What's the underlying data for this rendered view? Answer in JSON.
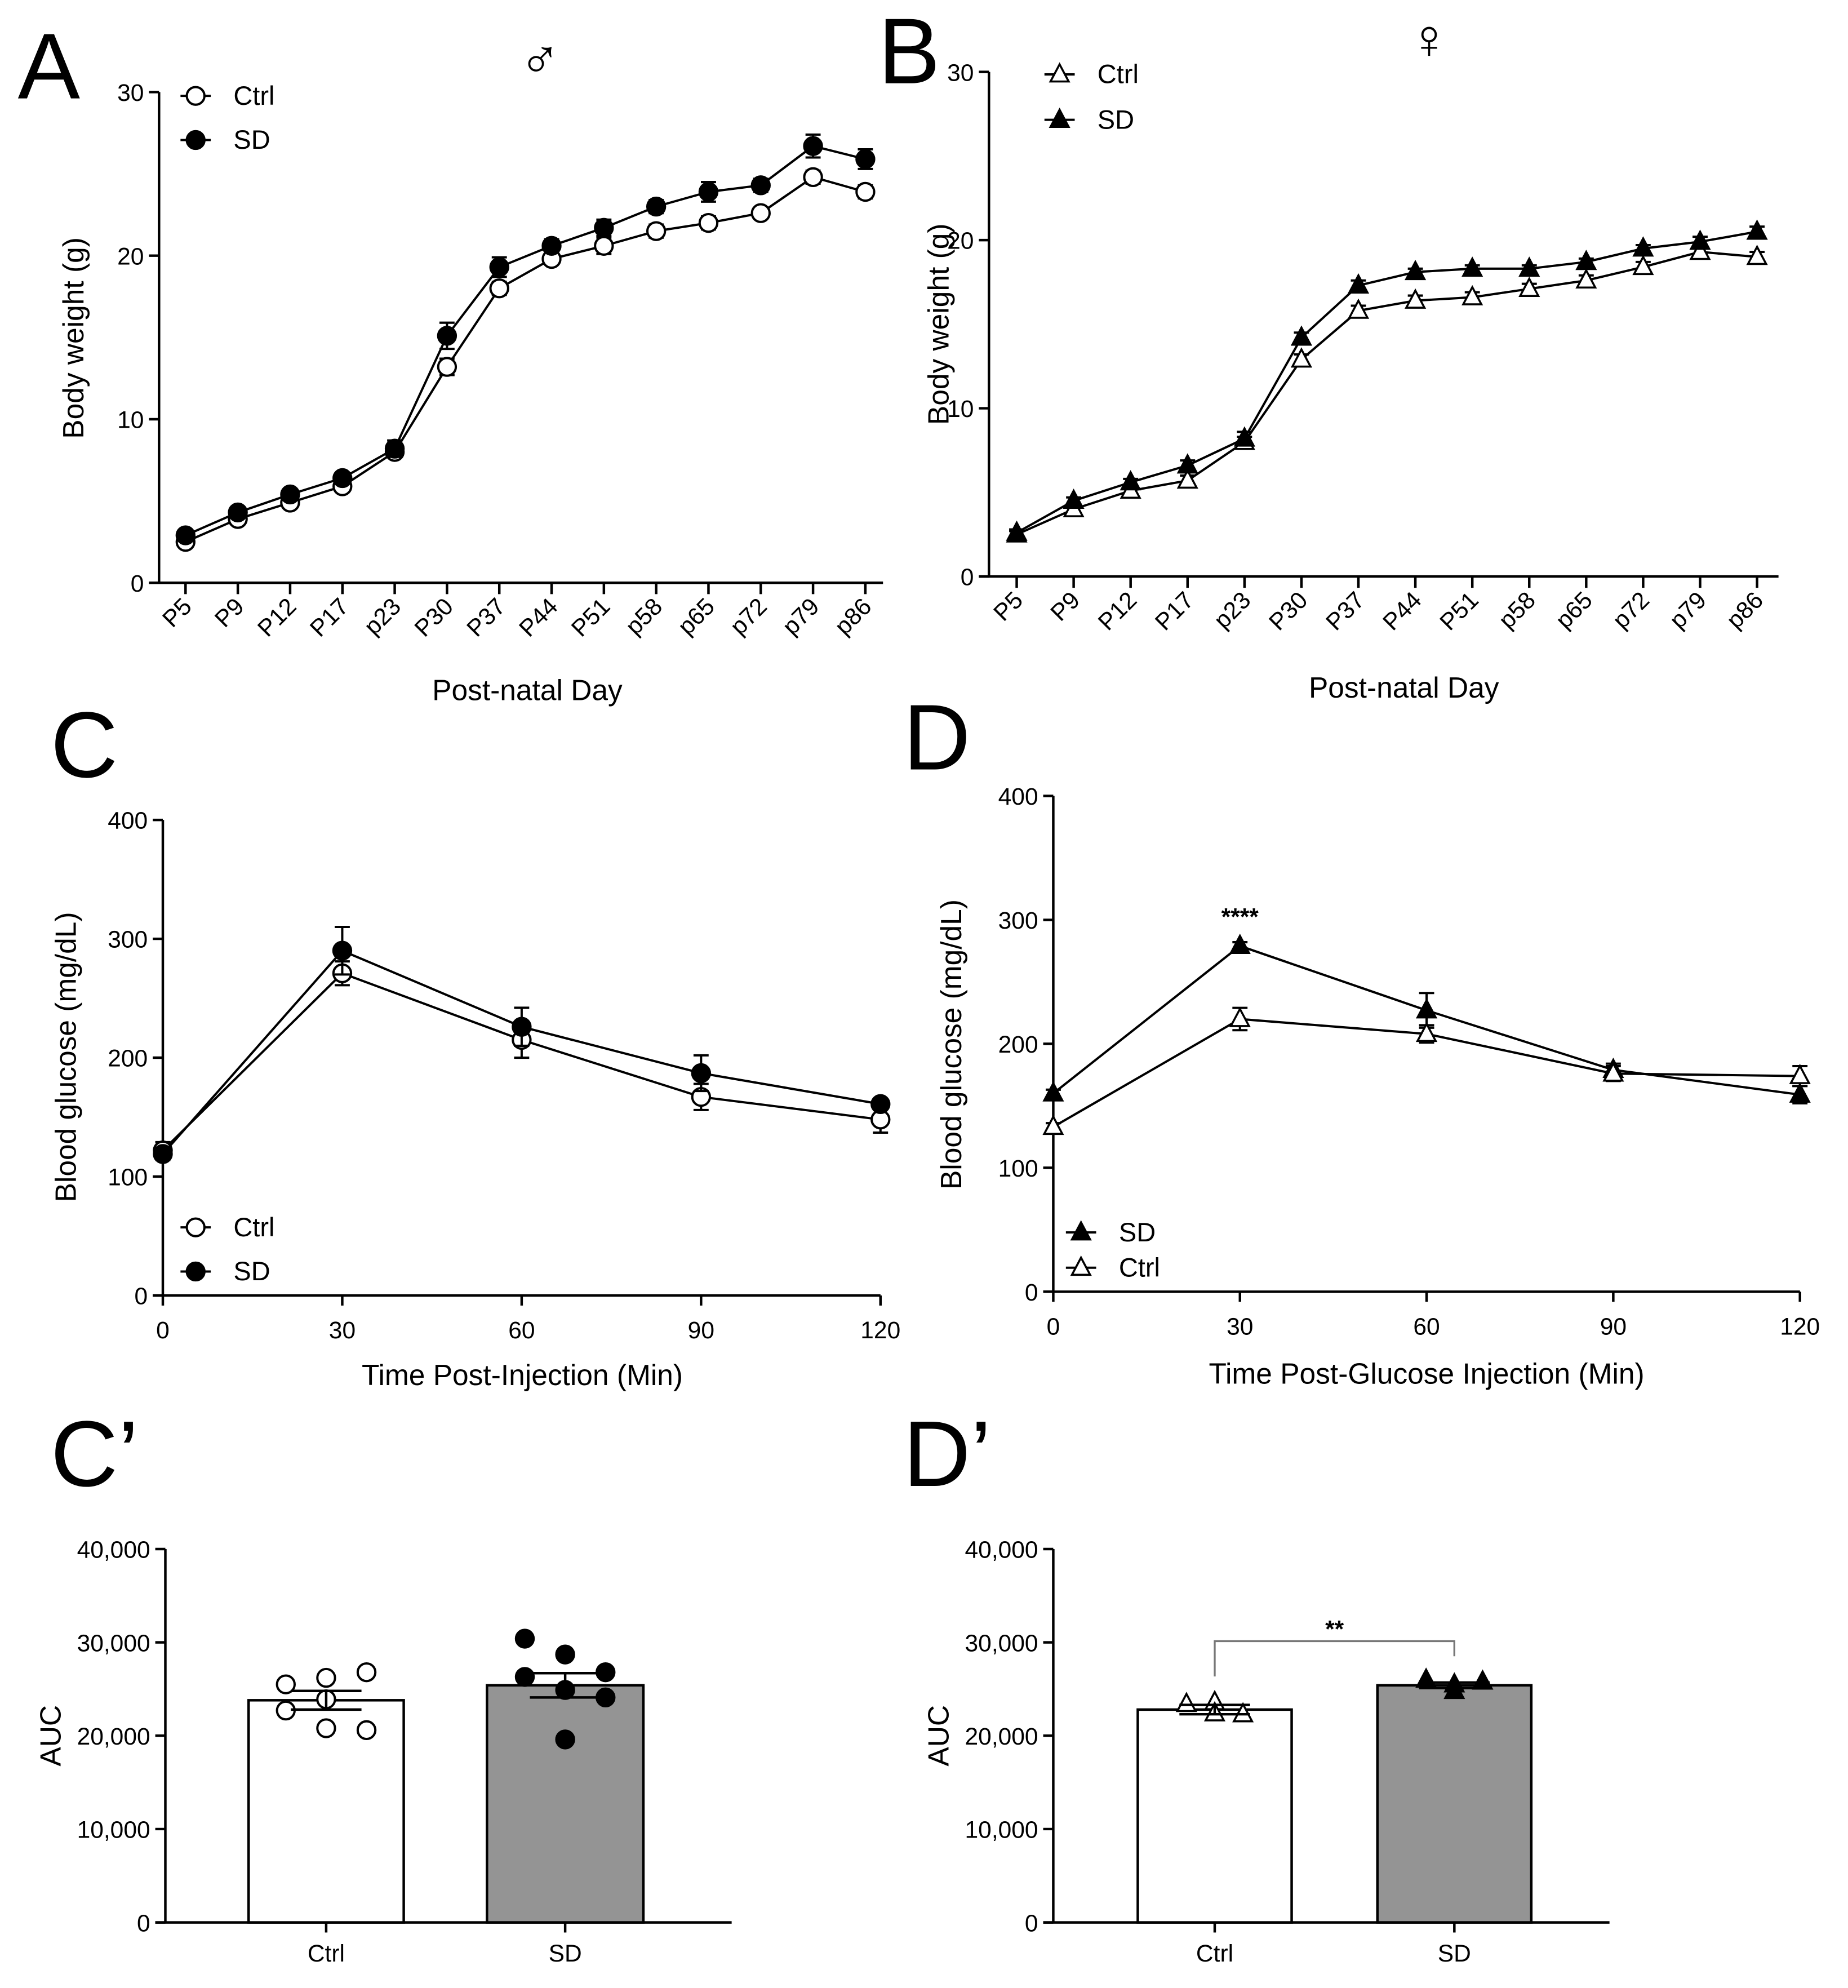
{
  "chart_data": [
    {
      "panel": "A",
      "type": "line",
      "title": "♂",
      "xlabel": "Post-natal Day",
      "ylabel": "Body weight (g)",
      "categories": [
        "P5",
        "P9",
        "P12",
        "P17",
        "p23",
        "P30",
        "P37",
        "P44",
        "P51",
        "p58",
        "p65",
        "p72",
        "p79",
        "p86"
      ],
      "ylim": [
        0,
        30
      ],
      "yticks": [
        0,
        10,
        20,
        30
      ],
      "legend": "top-left",
      "series": [
        {
          "name": "Ctrl",
          "marker": "open-circle",
          "values": [
            2.5,
            3.9,
            4.9,
            5.9,
            8.0,
            13.2,
            18.0,
            19.8,
            20.6,
            21.5,
            22.0,
            22.6,
            24.8,
            23.9
          ],
          "sem": [
            0.2,
            0.2,
            0.2,
            0.2,
            0.3,
            0.5,
            0.4,
            0.3,
            0.5,
            0.4,
            0.4,
            0.3,
            0.4,
            0.4
          ]
        },
        {
          "name": "SD",
          "marker": "filled-circle",
          "values": [
            2.9,
            4.3,
            5.4,
            6.4,
            8.2,
            15.1,
            19.3,
            20.6,
            21.7,
            23.0,
            23.9,
            24.3,
            26.7,
            25.9
          ],
          "sem": [
            0.2,
            0.2,
            0.3,
            0.3,
            0.5,
            0.8,
            0.6,
            0.4,
            0.5,
            0.4,
            0.6,
            0.4,
            0.7,
            0.6
          ]
        }
      ]
    },
    {
      "panel": "B",
      "type": "line",
      "title": "♀",
      "xlabel": "Post-natal Day",
      "ylabel": "Body weight (g)",
      "categories": [
        "P5",
        "P9",
        "P12",
        "P17",
        "p23",
        "P30",
        "P37",
        "P44",
        "P51",
        "p58",
        "p65",
        "p72",
        "p79",
        "p86"
      ],
      "ylim": [
        0,
        30
      ],
      "yticks": [
        0,
        10,
        20,
        30
      ],
      "legend": "top-left",
      "series": [
        {
          "name": "Ctrl",
          "marker": "open-triangle",
          "values": [
            2.5,
            4.0,
            5.1,
            5.7,
            8.0,
            12.9,
            15.8,
            16.4,
            16.6,
            17.1,
            17.6,
            18.4,
            19.3,
            19.0
          ],
          "sem": [
            0.2,
            0.2,
            0.2,
            0.3,
            0.3,
            0.3,
            0.3,
            0.3,
            0.3,
            0.3,
            0.3,
            0.3,
            0.3,
            0.3
          ]
        },
        {
          "name": "SD",
          "marker": "filled-triangle",
          "values": [
            2.6,
            4.5,
            5.6,
            6.6,
            8.2,
            14.2,
            17.3,
            18.1,
            18.3,
            18.3,
            18.7,
            19.5,
            19.9,
            20.5
          ],
          "sem": [
            0.2,
            0.2,
            0.2,
            0.3,
            0.4,
            0.3,
            0.3,
            0.2,
            0.2,
            0.2,
            0.2,
            0.2,
            0.3,
            0.3
          ]
        }
      ]
    },
    {
      "panel": "C",
      "type": "line",
      "xlabel": "Time Post-Injection (Min)",
      "ylabel": "Blood glucose (mg/dL)",
      "x": [
        0,
        30,
        60,
        90,
        120
      ],
      "xlim": [
        0,
        120
      ],
      "xticks": [
        0,
        30,
        60,
        90,
        120
      ],
      "ylim": [
        0,
        400
      ],
      "yticks": [
        0,
        100,
        200,
        300,
        400
      ],
      "legend": "bottom-left",
      "series": [
        {
          "name": "Ctrl",
          "marker": "open-circle",
          "values": [
            122,
            271,
            215,
            167,
            148
          ],
          "sem": [
            7,
            10,
            15,
            11,
            11
          ]
        },
        {
          "name": "SD",
          "marker": "filled-circle",
          "values": [
            119,
            290,
            226,
            187,
            161
          ],
          "sem": [
            5,
            20,
            16,
            15,
            4
          ]
        }
      ]
    },
    {
      "panel": "D",
      "type": "line",
      "xlabel": "Time Post-Glucose Injection (Min)",
      "ylabel": "Blood glucose (mg/dL)",
      "x": [
        0,
        30,
        60,
        90,
        120
      ],
      "xlim": [
        0,
        120
      ],
      "xticks": [
        0,
        30,
        60,
        90,
        120
      ],
      "ylim": [
        0,
        400
      ],
      "yticks": [
        0,
        100,
        200,
        300,
        400
      ],
      "legend": "bottom-left",
      "annotations": [
        {
          "text": "****",
          "x": 30,
          "y": 300
        }
      ],
      "series": [
        {
          "name": "SD",
          "marker": "filled-triangle",
          "values": [
            160,
            279,
            227,
            179,
            159
          ],
          "sem": [
            3,
            3,
            14,
            5,
            7
          ]
        },
        {
          "name": "Ctrl",
          "marker": "open-triangle",
          "values": [
            133,
            220,
            208,
            176,
            174
          ],
          "sem": [
            3,
            9,
            7,
            6,
            8
          ]
        }
      ]
    },
    {
      "panel": "C’",
      "type": "bar",
      "ylabel": "AUC",
      "categories": [
        "Ctrl",
        "SD"
      ],
      "values": [
        23800,
        25400
      ],
      "sem": [
        1000,
        1300
      ],
      "fills": [
        "#ffffff",
        "#949494"
      ],
      "markers": [
        "open-circle",
        "filled-circle"
      ],
      "points": [
        [
          25500,
          26200,
          26800,
          23900,
          22700,
          20600,
          20800
        ],
        [
          30400,
          28700,
          26800,
          24900,
          26300,
          24100,
          19600
        ]
      ],
      "ylim": [
        0,
        40000
      ],
      "yticks": [
        0,
        10000,
        20000,
        30000,
        40000
      ],
      "ytick_labels": [
        "0",
        "10,000",
        "20,000",
        "30,000",
        "40,000"
      ]
    },
    {
      "panel": "D’",
      "type": "bar",
      "ylabel": "AUC",
      "categories": [
        "Ctrl",
        "SD"
      ],
      "values": [
        22800,
        25400
      ],
      "sem": [
        500,
        300
      ],
      "fills": [
        "#ffffff",
        "#949494"
      ],
      "markers": [
        "open-triangle",
        "filled-triangle"
      ],
      "points": [
        [
          23400,
          23600,
          22300,
          22400
        ],
        [
          26000,
          24800,
          25800,
          25500
        ]
      ],
      "ylim": [
        0,
        40000
      ],
      "yticks": [
        0,
        10000,
        20000,
        30000,
        40000
      ],
      "ytick_labels": [
        "0",
        "10,000",
        "20,000",
        "30,000",
        "40,000"
      ],
      "annotations": [
        {
          "text": "**",
          "between": [
            "Ctrl",
            "SD"
          ]
        }
      ]
    }
  ]
}
